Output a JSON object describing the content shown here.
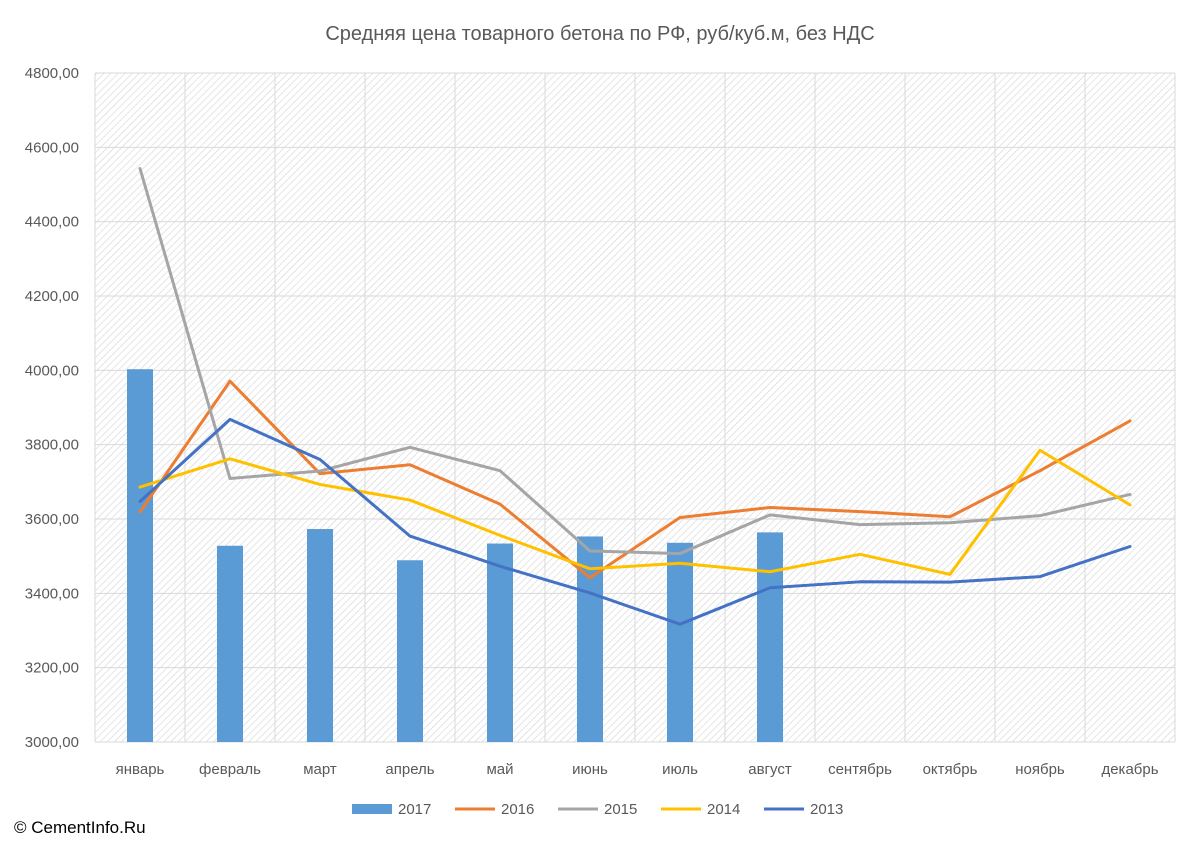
{
  "copyright": "© CementInfo.Ru",
  "chart_data": {
    "type": "bar",
    "title": "Средняя цена товарного бетона по РФ, руб/куб.м, без НДС",
    "xlabel": "",
    "ylabel": "",
    "ylim": [
      3000,
      4800
    ],
    "y_ticks": [
      "3000,00",
      "3200,00",
      "3400,00",
      "3600,00",
      "3800,00",
      "4000,00",
      "4200,00",
      "4400,00",
      "4600,00",
      "4800,00"
    ],
    "grid": true,
    "legend_position": "bottom",
    "categories": [
      "январь",
      "февраль",
      "март",
      "апрель",
      "май",
      "июнь",
      "июль",
      "август",
      "сентябрь",
      "октябрь",
      "ноябрь",
      "декабрь"
    ],
    "series": [
      {
        "name": "2017",
        "kind": "bar",
        "color": "#5B9BD5",
        "values": [
          4003,
          3528,
          3573,
          3489,
          3534,
          3553,
          3536,
          3564,
          null,
          null,
          null,
          null
        ]
      },
      {
        "name": "2016",
        "kind": "line",
        "color": "#ED7D31",
        "values": [
          3619,
          3971,
          3722,
          3746,
          3640,
          3442,
          3604,
          3631,
          3620,
          3606,
          3730,
          3864
        ]
      },
      {
        "name": "2015",
        "kind": "line",
        "color": "#A5A5A5",
        "values": [
          4543,
          3709,
          3729,
          3793,
          3730,
          3514,
          3507,
          3611,
          3585,
          3590,
          3609,
          3666
        ]
      },
      {
        "name": "2014",
        "kind": "line",
        "color": "#FFC000",
        "values": [
          3686,
          3762,
          3693,
          3651,
          3556,
          3466,
          3481,
          3458,
          3505,
          3451,
          3785,
          3638
        ]
      },
      {
        "name": "2013",
        "kind": "line",
        "color": "#4472C4",
        "values": [
          3647,
          3868,
          3760,
          3554,
          3473,
          3401,
          3317,
          3415,
          3431,
          3430,
          3445,
          3526
        ]
      }
    ]
  }
}
